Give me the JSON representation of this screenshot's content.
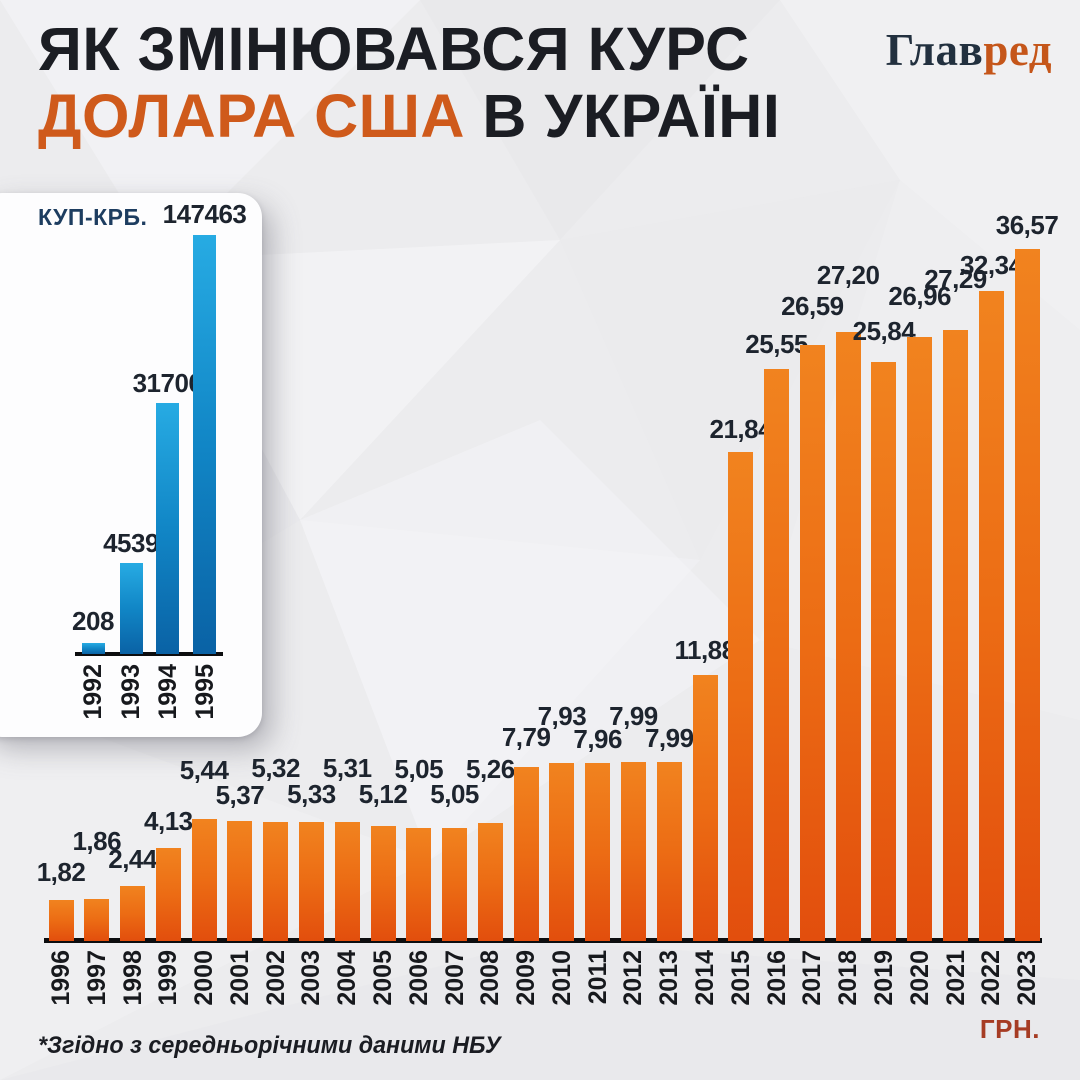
{
  "header": {
    "title_line1": "ЯК ЗМІНЮВАВСЯ КУРС",
    "title_line2_accent": "ДОЛАРА США",
    "title_line2_rest": " В УКРАЇНІ",
    "logo_part1": "Глав",
    "logo_part2": "ред"
  },
  "footer": {
    "note": "*Згідно з середньорічними даними НБУ",
    "unit_label": "ГРН."
  },
  "colors": {
    "background": "#ececee",
    "title_dark": "#1b1d23",
    "title_accent": "#cf5a1b",
    "logo_dark": "#22303f",
    "logo_accent": "#c5561a",
    "value_label": "#1d242e",
    "axis": "#0c0d0f",
    "grn_label": "#a63c24",
    "inset_unit_label": "#1d3d60"
  },
  "chart_data": [
    {
      "type": "bar",
      "name": "usd-rate-coupon-karbovanets-1992-1995",
      "unit": "КУП-КРБ.",
      "categories": [
        "1992",
        "1993",
        "1994",
        "1995"
      ],
      "values": [
        208,
        4539,
        31700,
        147463
      ],
      "value_labels": [
        "208",
        "4539",
        "31700",
        "147463"
      ],
      "bar_color_top": "#27abe3",
      "bar_color_mid": "#1186c6",
      "bar_color_bottom": "#0a62a5",
      "legend": "none",
      "grid": "off"
    },
    {
      "type": "bar",
      "name": "usd-rate-hryvnia-1996-2023",
      "unit": "ГРН.",
      "categories": [
        "1996",
        "1997",
        "1998",
        "1999",
        "2000",
        "2001",
        "2002",
        "2003",
        "2004",
        "2005",
        "2006",
        "2007",
        "2008",
        "2009",
        "2010",
        "2011",
        "2012",
        "2013",
        "2014",
        "2015",
        "2016",
        "2017",
        "2018",
        "2019",
        "2020",
        "2021",
        "2022",
        "2023"
      ],
      "values": [
        1.82,
        1.86,
        2.44,
        4.13,
        5.44,
        5.37,
        5.32,
        5.33,
        5.31,
        5.12,
        5.05,
        5.05,
        5.26,
        7.79,
        7.93,
        7.96,
        7.99,
        7.99,
        11.88,
        21.84,
        25.55,
        26.59,
        27.2,
        25.84,
        26.96,
        27.29,
        32.34,
        36.57
      ],
      "value_labels": [
        "1,82",
        "1,86",
        "2,44",
        "4,13",
        "5,44",
        "5,37",
        "5,32",
        "5,33",
        "5,31",
        "5,12",
        "5,05",
        "5,05",
        "5,26",
        "7,79",
        "7,93",
        "7,96",
        "7,99",
        "7,99",
        "11,88",
        "21,84",
        "25,55",
        "26,59",
        "27,20",
        "25,84",
        "26,96",
        "27,29",
        "32,34",
        "36,57"
      ],
      "bar_color_top": "#f1831f",
      "bar_color_mid": "#ec6c14",
      "bar_color_bottom": "#e24e0d",
      "legend": "none",
      "grid": "off",
      "footnote": "*Згідно з середньорічними даними НБУ"
    }
  ]
}
